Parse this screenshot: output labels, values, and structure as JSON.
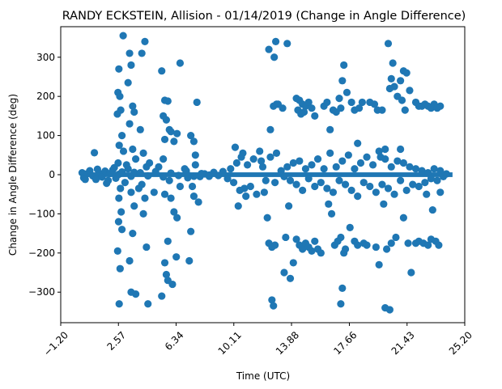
{
  "chart_data": {
    "type": "scatter",
    "title": "RANDY ECKSTEIN, Allision - 01/14/2019 (Change in Angle Difference)",
    "xlabel": "Time (UTC)",
    "ylabel": "Change in Angle Difference (deg)",
    "xlim": [
      -1.2,
      25.2
    ],
    "ylim": [
      -378,
      378
    ],
    "x_ticks": [
      -1.2,
      2.57,
      6.34,
      10.11,
      13.88,
      17.66,
      21.43,
      25.2
    ],
    "x_tick_labels": [
      "−1.20",
      "2.57",
      "6.34",
      "10.11",
      "13.88",
      "17.66",
      "21.43",
      "25.20"
    ],
    "y_ticks": [
      -300,
      -200,
      -100,
      0,
      100,
      200,
      300
    ],
    "y_tick_labels": [
      "−300",
      "−200",
      "−100",
      "0",
      "100",
      "200",
      "300"
    ],
    "marker_color": "#1f77b4",
    "grid": false,
    "legend": "none",
    "series": [
      {
        "points": [
          [
            0.2,
            5
          ],
          [
            0.3,
            -8
          ],
          [
            0.5,
            2
          ],
          [
            0.7,
            10
          ],
          [
            0.9,
            -3
          ],
          [
            1.0,
            56
          ],
          [
            1.1,
            -12
          ],
          [
            1.3,
            4
          ],
          [
            1.5,
            -6
          ],
          [
            1.7,
            9
          ],
          [
            1.9,
            -15
          ],
          [
            2.0,
            3
          ],
          [
            2.2,
            12
          ],
          [
            2.4,
            -9
          ],
          [
            2.6,
            1
          ],
          [
            2.8,
            7
          ],
          [
            3.0,
            -20
          ],
          [
            3.2,
            15
          ],
          [
            3.4,
            -4
          ],
          [
            3.6,
            6
          ],
          [
            2.88,
            355
          ],
          [
            2.6,
            270
          ],
          [
            2.54,
            210
          ],
          [
            2.66,
            200
          ],
          [
            2.5,
            155
          ],
          [
            2.72,
            165
          ],
          [
            2.8,
            100
          ],
          [
            2.62,
            75
          ],
          [
            2.9,
            60
          ],
          [
            2.55,
            30
          ],
          [
            2.7,
            -35
          ],
          [
            2.6,
            -60
          ],
          [
            2.75,
            -95
          ],
          [
            2.58,
            -120
          ],
          [
            2.8,
            -140
          ],
          [
            2.52,
            -195
          ],
          [
            2.68,
            -240
          ],
          [
            2.62,
            -330
          ],
          [
            3.3,
            310
          ],
          [
            3.4,
            280
          ],
          [
            3.2,
            235
          ],
          [
            3.5,
            175
          ],
          [
            3.6,
            160
          ],
          [
            3.3,
            130
          ],
          [
            3.5,
            65
          ],
          [
            3.7,
            40
          ],
          [
            3.4,
            -45
          ],
          [
            3.6,
            -80
          ],
          [
            3.5,
            -150
          ],
          [
            3.3,
            -220
          ],
          [
            3.4,
            -300
          ],
          [
            3.7,
            -305
          ],
          [
            4.3,
            340
          ],
          [
            4.1,
            310
          ],
          [
            4.0,
            115
          ],
          [
            4.2,
            55
          ],
          [
            4.4,
            20
          ],
          [
            4.1,
            -25
          ],
          [
            4.3,
            -60
          ],
          [
            4.2,
            -100
          ],
          [
            4.4,
            -185
          ],
          [
            4.5,
            -330
          ],
          [
            5.4,
            265
          ],
          [
            5.6,
            190
          ],
          [
            5.8,
            188
          ],
          [
            5.5,
            150
          ],
          [
            5.7,
            140
          ],
          [
            5.6,
            90
          ],
          [
            5.9,
            115
          ],
          [
            6.0,
            110
          ],
          [
            6.2,
            85
          ],
          [
            6.4,
            105
          ],
          [
            5.5,
            40
          ],
          [
            5.9,
            -15
          ],
          [
            5.6,
            -50
          ],
          [
            6.0,
            -60
          ],
          [
            6.2,
            -95
          ],
          [
            6.4,
            -110
          ],
          [
            5.8,
            -170
          ],
          [
            5.6,
            -225
          ],
          [
            5.7,
            -255
          ],
          [
            5.8,
            -270
          ],
          [
            5.4,
            -310
          ],
          [
            6.1,
            -280
          ],
          [
            6.35,
            -210
          ],
          [
            6.6,
            285
          ],
          [
            7.3,
            100
          ],
          [
            7.5,
            85
          ],
          [
            7.7,
            185
          ],
          [
            7.6,
            50
          ],
          [
            7.4,
            -30
          ],
          [
            7.5,
            -55
          ],
          [
            7.8,
            -70
          ],
          [
            7.3,
            -145
          ],
          [
            7.2,
            -220
          ],
          [
            7.6,
            25
          ],
          [
            7.0,
            10
          ],
          [
            7.9,
            -5
          ],
          [
            8.2,
            2
          ],
          [
            8.5,
            -4
          ],
          [
            8.8,
            6
          ],
          [
            9.1,
            -2
          ],
          [
            9.4,
            8
          ],
          [
            9.7,
            -10
          ],
          [
            9.9,
            15
          ],
          [
            10.1,
            -20
          ],
          [
            10.3,
            30
          ],
          [
            10.5,
            -40
          ],
          [
            10.7,
            55
          ],
          [
            10.9,
            -55
          ],
          [
            10.2,
            70
          ],
          [
            10.4,
            -80
          ],
          [
            10.6,
            45
          ],
          [
            10.8,
            -35
          ],
          [
            11.0,
            25
          ],
          [
            11.2,
            -30
          ],
          [
            11.4,
            40
          ],
          [
            11.6,
            -50
          ],
          [
            11.8,
            60
          ],
          [
            12.0,
            20
          ],
          [
            12.2,
            -15
          ],
          [
            12.5,
            115
          ],
          [
            12.7,
            175
          ],
          [
            12.9,
            180
          ],
          [
            12.4,
            320
          ],
          [
            12.6,
            -320
          ],
          [
            12.7,
            -335
          ],
          [
            12.3,
            -110
          ],
          [
            12.4,
            -175
          ],
          [
            12.6,
            -185
          ],
          [
            12.8,
            -180
          ],
          [
            12.5,
            45
          ],
          [
            12.8,
            -20
          ],
          [
            13.0,
            180
          ],
          [
            12.75,
            300
          ],
          [
            12.85,
            340
          ],
          [
            13.6,
            335
          ],
          [
            13.3,
            170
          ],
          [
            13.7,
            -80
          ],
          [
            13.5,
            -160
          ],
          [
            13.4,
            -250
          ],
          [
            13.8,
            -265
          ],
          [
            14.0,
            -225
          ],
          [
            14.2,
            195
          ],
          [
            14.4,
            190
          ],
          [
            14.6,
            180
          ],
          [
            14.8,
            175
          ],
          [
            15.0,
            185
          ],
          [
            14.3,
            165
          ],
          [
            14.5,
            155
          ],
          [
            14.7,
            160
          ],
          [
            15.2,
            170
          ],
          [
            15.4,
            150
          ],
          [
            14.2,
            -165
          ],
          [
            14.4,
            -180
          ],
          [
            14.6,
            -190
          ],
          [
            14.8,
            -175
          ],
          [
            15.0,
            -185
          ],
          [
            15.2,
            -195
          ],
          [
            15.4,
            -170
          ],
          [
            15.6,
            -190
          ],
          [
            15.8,
            -200
          ],
          [
            16.0,
            175
          ],
          [
            16.2,
            185
          ],
          [
            16.4,
            115
          ],
          [
            16.6,
            165
          ],
          [
            16.8,
            160
          ],
          [
            17.0,
            195
          ],
          [
            17.2,
            240
          ],
          [
            17.3,
            280
          ],
          [
            17.1,
            170
          ],
          [
            17.5,
            210
          ],
          [
            16.3,
            -75
          ],
          [
            16.5,
            -100
          ],
          [
            16.7,
            -180
          ],
          [
            16.9,
            -170
          ],
          [
            17.1,
            -160
          ],
          [
            17.3,
            -200
          ],
          [
            17.4,
            -190
          ],
          [
            17.2,
            -290
          ],
          [
            17.1,
            -330
          ],
          [
            17.8,
            185
          ],
          [
            18.0,
            165
          ],
          [
            18.3,
            170
          ],
          [
            18.5,
            185
          ],
          [
            18.2,
            80
          ],
          [
            17.7,
            -135
          ],
          [
            18.0,
            -170
          ],
          [
            18.2,
            -180
          ],
          [
            18.6,
            -175
          ],
          [
            18.8,
            -180
          ],
          [
            19.0,
            185
          ],
          [
            19.3,
            180
          ],
          [
            19.5,
            165
          ],
          [
            19.8,
            165
          ],
          [
            19.7,
            45
          ],
          [
            20.0,
            65
          ],
          [
            19.9,
            -75
          ],
          [
            19.6,
            -230
          ],
          [
            19.4,
            -185
          ],
          [
            20.1,
            -190
          ],
          [
            20.2,
            335
          ],
          [
            20.5,
            285
          ],
          [
            20.4,
            245
          ],
          [
            20.6,
            225
          ],
          [
            20.8,
            200
          ],
          [
            20.3,
            220
          ],
          [
            20.0,
            -340
          ],
          [
            20.3,
            -345
          ],
          [
            20.4,
            -175
          ],
          [
            20.7,
            -160
          ],
          [
            21.0,
            240
          ],
          [
            21.2,
            265
          ],
          [
            21.4,
            260
          ],
          [
            21.1,
            190
          ],
          [
            21.6,
            215
          ],
          [
            21.3,
            165
          ],
          [
            21.0,
            65
          ],
          [
            21.2,
            -110
          ],
          [
            21.5,
            -175
          ],
          [
            21.7,
            -250
          ],
          [
            22.0,
            185
          ],
          [
            22.2,
            175
          ],
          [
            22.4,
            175
          ],
          [
            22.6,
            180
          ],
          [
            22.8,
            175
          ],
          [
            23.0,
            170
          ],
          [
            23.2,
            180
          ],
          [
            23.4,
            170
          ],
          [
            23.6,
            175
          ],
          [
            22.0,
            -175
          ],
          [
            22.2,
            -170
          ],
          [
            22.5,
            -175
          ],
          [
            22.8,
            -180
          ],
          [
            23.0,
            -165
          ],
          [
            23.3,
            -170
          ],
          [
            23.5,
            -180
          ],
          [
            22.7,
            -50
          ],
          [
            23.1,
            -90
          ],
          [
            23.6,
            -45
          ],
          [
            13.2,
            10
          ],
          [
            13.4,
            -5
          ],
          [
            13.6,
            20
          ],
          [
            13.8,
            -15
          ],
          [
            14.0,
            30
          ],
          [
            14.2,
            -25
          ],
          [
            14.4,
            35
          ],
          [
            14.6,
            -40
          ],
          [
            14.8,
            15
          ],
          [
            15.0,
            -10
          ],
          [
            15.2,
            25
          ],
          [
            15.4,
            -30
          ],
          [
            15.6,
            40
          ],
          [
            15.8,
            -20
          ],
          [
            16.0,
            15
          ],
          [
            16.2,
            -35
          ],
          [
            16.4,
            55
          ],
          [
            16.6,
            -45
          ],
          [
            16.8,
            20
          ],
          [
            17.0,
            -15
          ],
          [
            17.2,
            35
          ],
          [
            17.4,
            -25
          ],
          [
            17.6,
            50
          ],
          [
            17.8,
            -40
          ],
          [
            18.0,
            15
          ],
          [
            18.2,
            -55
          ],
          [
            18.4,
            30
          ],
          [
            18.6,
            -20
          ],
          [
            18.8,
            45
          ],
          [
            19.0,
            -30
          ],
          [
            19.2,
            25
          ],
          [
            19.4,
            -45
          ],
          [
            19.6,
            60
          ],
          [
            19.8,
            -25
          ],
          [
            20.0,
            40
          ],
          [
            20.2,
            -35
          ],
          [
            20.4,
            20
          ],
          [
            20.6,
            -50
          ],
          [
            20.8,
            35
          ],
          [
            21.0,
            -15
          ],
          [
            21.2,
            30
          ],
          [
            21.4,
            -40
          ],
          [
            21.6,
            20
          ],
          [
            21.8,
            -25
          ],
          [
            22.0,
            15
          ],
          [
            22.2,
            -30
          ],
          [
            22.4,
            10
          ],
          [
            22.6,
            -20
          ],
          [
            22.8,
            5
          ],
          [
            23.0,
            -10
          ],
          [
            23.2,
            15
          ],
          [
            23.4,
            -15
          ],
          [
            23.6,
            10
          ],
          [
            23.8,
            -5
          ],
          [
            24.0,
            2
          ],
          [
            0.4,
            -12
          ],
          [
            1.2,
            14
          ],
          [
            1.8,
            -22
          ],
          [
            2.3,
            18
          ],
          [
            3.1,
            25
          ],
          [
            3.9,
            -35
          ],
          [
            4.6,
            30
          ],
          [
            4.9,
            -45
          ],
          [
            5.2,
            20
          ],
          [
            6.6,
            -30
          ],
          [
            6.9,
            15
          ],
          [
            7.1,
            -8
          ],
          [
            11.9,
            35
          ],
          [
            12.1,
            -45
          ],
          [
            12.9,
            55
          ],
          [
            4.0,
            5
          ],
          [
            4.5,
            -3
          ],
          [
            5.0,
            8
          ],
          [
            5.5,
            -6
          ],
          [
            6.0,
            4
          ],
          [
            6.5,
            -2
          ],
          [
            7.0,
            6
          ],
          [
            7.5,
            -4
          ],
          [
            8.0,
            3
          ],
          [
            8.5,
            -1
          ]
        ]
      }
    ]
  }
}
